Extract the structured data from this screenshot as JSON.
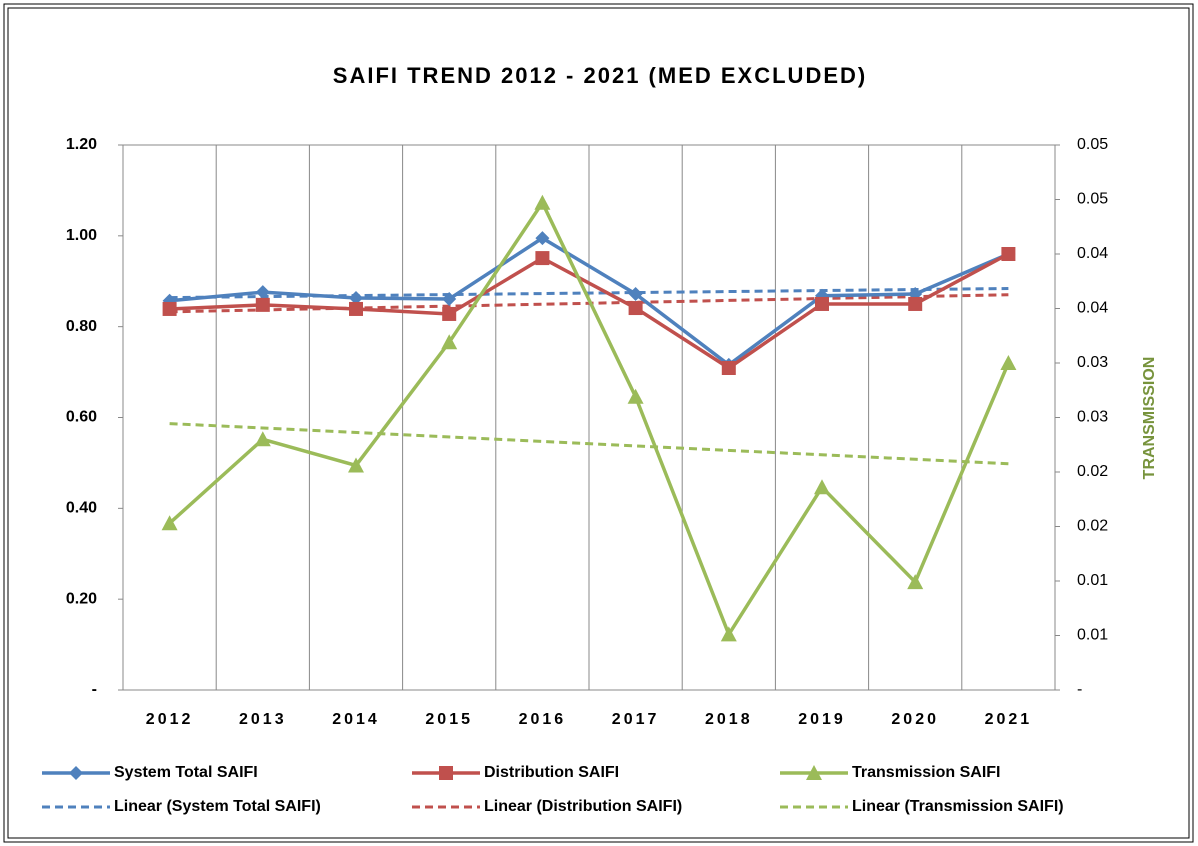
{
  "chart_data": {
    "type": "line",
    "title": "SAIFI TREND 2012 - 2021 (MED EXCLUDED)",
    "y2label": "TRANSMISSION",
    "categories": [
      "2012",
      "2013",
      "2014",
      "2015",
      "2016",
      "2017",
      "2018",
      "2019",
      "2020",
      "2021"
    ],
    "series": [
      {
        "name": "System Total SAIFI",
        "color": "#4f81bd",
        "marker": "diamond",
        "trendline": "Linear (System Total SAIFI)",
        "values": [
          0.857,
          0.876,
          0.863,
          0.861,
          0.995,
          0.872,
          0.716,
          0.868,
          0.872,
          0.96
        ]
      },
      {
        "name": "Distribution SAIFI",
        "color": "#c0504d",
        "marker": "square",
        "trendline": "Linear (Distribution SAIFI)",
        "values": [
          0.839,
          0.848,
          0.839,
          0.828,
          0.951,
          0.841,
          0.709,
          0.85,
          0.85,
          0.96
        ]
      },
      {
        "name": "Transmission SAIFI",
        "color": "#9bbb59",
        "marker": "triangle",
        "axis": "y2",
        "trendline": "Linear (Transmission SAIFI)",
        "values": [
          0.0153,
          0.023,
          0.0206,
          0.0319,
          0.0447,
          0.0269,
          0.0051,
          0.0186,
          0.0099,
          0.03
        ]
      }
    ],
    "ylim": [
      0,
      1.2
    ],
    "yticks": [
      {
        "value": 0,
        "label": "-"
      },
      {
        "value": 0.2,
        "label": "0.20"
      },
      {
        "value": 0.4,
        "label": "0.40"
      },
      {
        "value": 0.6,
        "label": "0.60"
      },
      {
        "value": 0.8,
        "label": "0.80"
      },
      {
        "value": 1.0,
        "label": "1.00"
      },
      {
        "value": 1.2,
        "label": "1.20"
      }
    ],
    "y2lim": [
      0,
      0.05
    ],
    "y2ticks": [
      {
        "value": 0,
        "label": "-"
      },
      {
        "value": 0.005,
        "label": "0.01"
      },
      0.01,
      {
        "value": 0.015,
        "label": "0.02"
      },
      0.02,
      {
        "value": 0.025,
        "label": "0.03"
      },
      0.03,
      {
        "value": 0.035,
        "label": "0.04"
      },
      0.04,
      {
        "value": 0.045,
        "label": "0.05"
      },
      0.05
    ],
    "xgrid": true
  }
}
